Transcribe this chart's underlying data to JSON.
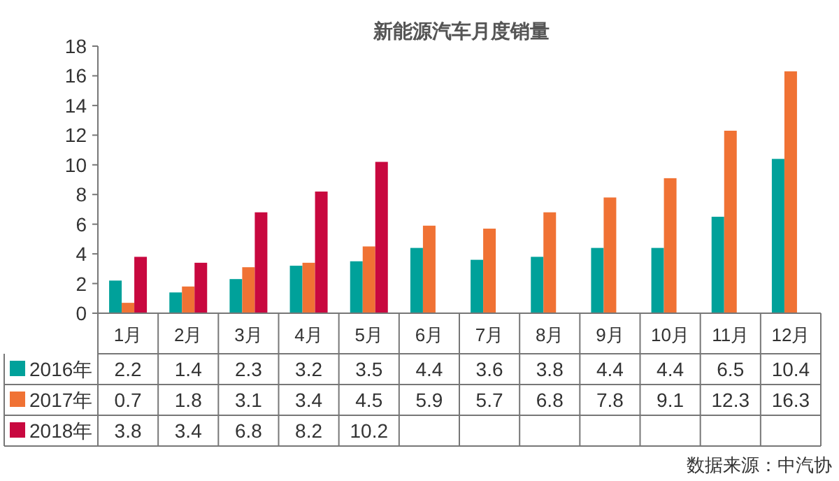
{
  "chart_data": {
    "type": "bar",
    "title": "新能源汽车月度销量",
    "categories": [
      "1月",
      "2月",
      "3月",
      "4月",
      "5月",
      "6月",
      "7月",
      "8月",
      "9月",
      "10月",
      "11月",
      "12月"
    ],
    "series": [
      {
        "name": "2016年",
        "color": "#00a19a",
        "values": [
          2.2,
          1.4,
          2.3,
          3.2,
          3.5,
          4.4,
          3.6,
          3.8,
          4.4,
          4.4,
          6.5,
          10.4
        ]
      },
      {
        "name": "2017年",
        "color": "#f07234",
        "values": [
          0.7,
          1.8,
          3.1,
          3.4,
          4.5,
          5.9,
          5.7,
          6.8,
          7.8,
          9.1,
          12.3,
          16.3
        ]
      },
      {
        "name": "2018年",
        "color": "#c8083f",
        "values": [
          3.8,
          3.4,
          6.8,
          8.2,
          10.2,
          null,
          null,
          null,
          null,
          null,
          null,
          null
        ]
      }
    ],
    "ylim": [
      0,
      18
    ],
    "yticks": [
      0,
      2,
      4,
      6,
      8,
      10,
      12,
      14,
      16,
      18
    ],
    "grid": false,
    "legend": "bottom",
    "data_labels": true,
    "annotations": [
      "数据来源：中汽协"
    ]
  }
}
